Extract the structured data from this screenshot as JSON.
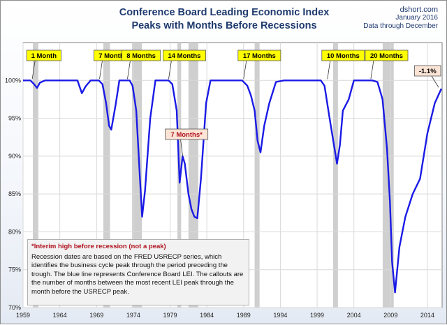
{
  "header": {
    "title_line1": "Conference Board Leading Economic Index",
    "title_line2": "Peaks with Months Before Recessions",
    "source_site": "dshort.com",
    "source_date": "January 2016",
    "source_note": "Data through December"
  },
  "notes": {
    "interim_note": "*Interim high before recession (not a peak)",
    "description": "Recession dates are based on the FRED USRECP series, which identifies the business cycle peak through the period preceding the trough. The blue line represents Conference Board LEI. The callouts are the number of months between the most recent LEI peak through the month  before the USRECP peak."
  },
  "colors": {
    "series": "#1a1ae6",
    "recession_shade": "#cfcfcf",
    "callout_yellow": "#ffff00",
    "callout_pink": "#fbe4d5",
    "title": "#1f3a6e"
  },
  "chart_data": {
    "type": "line",
    "title": "Conference Board Leading Economic Index Peaks with Months Before Recessions",
    "xlabel": "",
    "ylabel": "",
    "xlim": [
      1959,
      2016
    ],
    "ylim": [
      70,
      105
    ],
    "grid": true,
    "x_ticks": [
      1959,
      1964,
      1969,
      1974,
      1979,
      1984,
      1989,
      1994,
      1999,
      2004,
      2009,
      2014
    ],
    "y_ticks": [
      70,
      75,
      80,
      85,
      90,
      95,
      100
    ],
    "y_tick_labels": [
      "70%",
      "75%",
      "80%",
      "85%",
      "90%",
      "95%",
      "100%"
    ],
    "recessions": [
      [
        1960.33,
        1961.08
      ],
      [
        1969.92,
        1970.83
      ],
      [
        1973.83,
        1975.17
      ],
      [
        1980.0,
        1980.5
      ],
      [
        1981.5,
        1982.83
      ],
      [
        1990.5,
        1991.17
      ],
      [
        2001.17,
        2001.83
      ],
      [
        2007.92,
        2009.42
      ]
    ],
    "series": [
      {
        "x": [
          1959.0,
          1960.0,
          1960.5,
          1960.9,
          1961.3,
          1962.0,
          1965.0,
          1966.4,
          1967.0,
          1967.5,
          1968.2,
          1969.3,
          1969.8,
          1970.3,
          1970.7,
          1971.0,
          1971.6,
          1972.1,
          1973.5,
          1973.9,
          1974.4,
          1974.9,
          1975.2,
          1975.6,
          1976.3,
          1977.0,
          1978.8,
          1979.3,
          1979.9,
          1980.3,
          1980.7,
          1981.0,
          1981.5,
          1981.9,
          1982.3,
          1982.7,
          1983.2,
          1983.9,
          1984.5,
          1988.8,
          1989.5,
          1990.0,
          1990.5,
          1990.9,
          1991.3,
          1991.8,
          1992.5,
          1993.4,
          1994.5,
          1999.5,
          2000.0,
          2000.7,
          2001.2,
          2001.7,
          2002.1,
          2002.5,
          2003.3,
          2004.0,
          2006.5,
          2007.2,
          2007.9,
          2008.5,
          2008.9,
          2009.2,
          2009.6,
          2010.2,
          2011.0,
          2012.0,
          2013.0,
          2014.0,
          2015.0,
          2015.9
        ],
        "values": [
          100,
          100,
          99.5,
          99.0,
          99.7,
          100,
          100,
          100,
          98.3,
          99.2,
          100,
          100,
          99.5,
          97.0,
          94.0,
          93.5,
          96.8,
          100,
          100,
          99.3,
          96.0,
          87.0,
          82.0,
          85.5,
          95.0,
          100,
          100,
          99.5,
          96.0,
          86.5,
          90.0,
          89.0,
          85.0,
          83.0,
          82.0,
          81.8,
          87.0,
          97.0,
          100,
          100,
          99.3,
          98.0,
          96.0,
          92.0,
          90.5,
          94.0,
          97.0,
          99.8,
          100,
          100,
          99.3,
          95.0,
          92.0,
          89.0,
          91.5,
          96.0,
          97.5,
          100,
          100,
          99.8,
          97.5,
          91.0,
          84.0,
          76.0,
          72.0,
          78.0,
          82.0,
          85.0,
          87.0,
          93.0,
          97.0,
          98.9
        ]
      }
    ],
    "callouts": [
      {
        "label": "1 Month",
        "x": 1960.25,
        "y": 100,
        "style": "yellow"
      },
      {
        "label": "7 Months",
        "x": 1969.4,
        "y": 100,
        "style": "yellow"
      },
      {
        "label": "8 Months",
        "x": 1973.2,
        "y": 100,
        "style": "yellow"
      },
      {
        "label": "14 Months",
        "x": 1978.8,
        "y": 100,
        "style": "yellow"
      },
      {
        "label": "17 Months",
        "x": 1989.0,
        "y": 100,
        "style": "yellow"
      },
      {
        "label": "10 Months",
        "x": 2000.4,
        "y": 100,
        "style": "yellow"
      },
      {
        "label": "20 Months",
        "x": 2006.3,
        "y": 100,
        "style": "yellow"
      },
      {
        "label": "7 Months*",
        "x": 1981.0,
        "y": 89.6,
        "style": "pink"
      },
      {
        "label": "-1.1%",
        "x": 2015.9,
        "y": 98.9,
        "style": "pink"
      }
    ]
  }
}
